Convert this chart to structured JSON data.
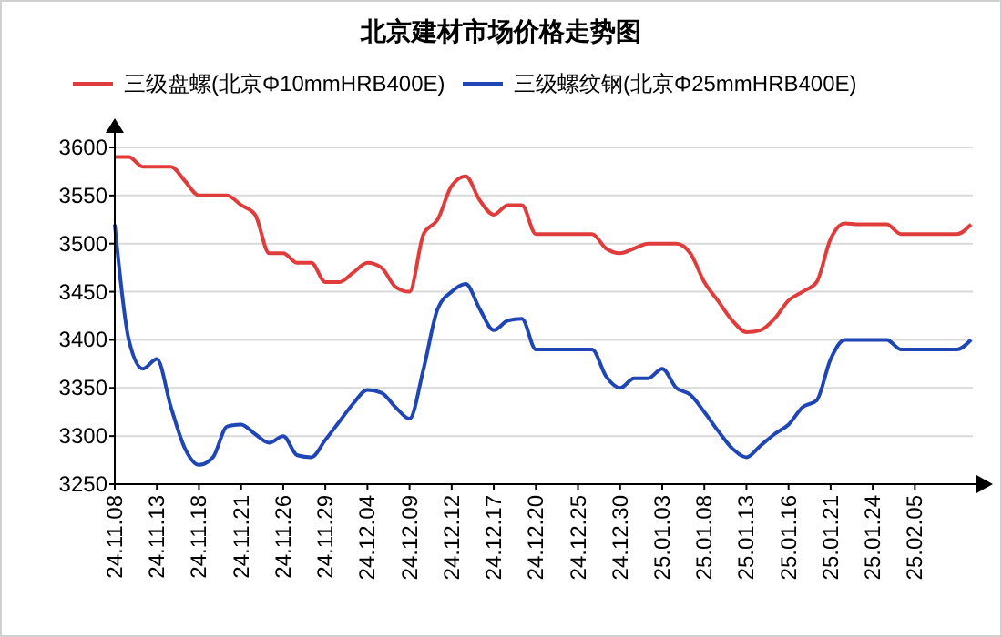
{
  "chart_data": {
    "type": "line",
    "title": "北京建材市场价格走势图",
    "categories": [
      "24.11.08",
      null,
      null,
      "24.11.13",
      null,
      null,
      "24.11.18",
      null,
      null,
      "24.11.21",
      null,
      null,
      "24.11.26",
      null,
      null,
      "24.11.29",
      null,
      null,
      "24.12.04",
      null,
      null,
      "24.12.09",
      null,
      null,
      "24.12.12",
      null,
      null,
      "24.12.17",
      null,
      null,
      "24.12.20",
      null,
      null,
      "24.12.25",
      null,
      null,
      "24.12.30",
      null,
      null,
      "25.01.03",
      null,
      null,
      "25.01.08",
      null,
      null,
      "25.01.13",
      null,
      null,
      "25.01.16",
      null,
      null,
      "25.01.21",
      null,
      null,
      "25.01.24",
      null,
      null,
      "25.02.05",
      null,
      null,
      null,
      null
    ],
    "series": [
      {
        "name": "三级盘螺(北京Φ10mmHRB400E)",
        "color": "#e03c3c",
        "values": [
          3590,
          3590,
          3580,
          3580,
          3580,
          3565,
          3550,
          3550,
          3550,
          3540,
          3530,
          3490,
          3490,
          3480,
          3480,
          3460,
          3460,
          3470,
          3480,
          3475,
          3455,
          3450,
          3510,
          3525,
          3560,
          3570,
          3545,
          3530,
          3540,
          3540,
          3510,
          3510,
          3510,
          3510,
          3510,
          3495,
          3490,
          3495,
          3500,
          3500,
          3500,
          3490,
          3460,
          3440,
          3420,
          3408,
          3410,
          3422,
          3441,
          3450,
          3460,
          3505,
          3521,
          3520,
          3520,
          3520,
          3510,
          3510,
          3510,
          3510,
          3510,
          3520
        ]
      },
      {
        "name": "三级螺纹钢(北京Φ25mmHRB400E)",
        "color": "#1f46b4",
        "values": [
          3520,
          3400,
          3370,
          3380,
          3330,
          3287,
          3270,
          3278,
          3310,
          3312,
          3302,
          3293,
          3300,
          3280,
          3278,
          3296,
          3315,
          3334,
          3348,
          3345,
          3330,
          3318,
          3370,
          3432,
          3450,
          3458,
          3432,
          3410,
          3420,
          3422,
          3390,
          3390,
          3390,
          3390,
          3390,
          3362,
          3350,
          3360,
          3360,
          3370,
          3350,
          3343,
          3325,
          3305,
          3287,
          3278,
          3290,
          3302,
          3312,
          3330,
          3337,
          3380,
          3400,
          3400,
          3400,
          3400,
          3390,
          3390,
          3390,
          3390,
          3390,
          3400
        ]
      }
    ],
    "ylim": [
      3250,
      3600
    ],
    "yticks": [
      3250,
      3300,
      3350,
      3400,
      3450,
      3500,
      3550,
      3600
    ],
    "grid": "y",
    "legend": "top",
    "marker": "none",
    "line_style": "solid"
  }
}
